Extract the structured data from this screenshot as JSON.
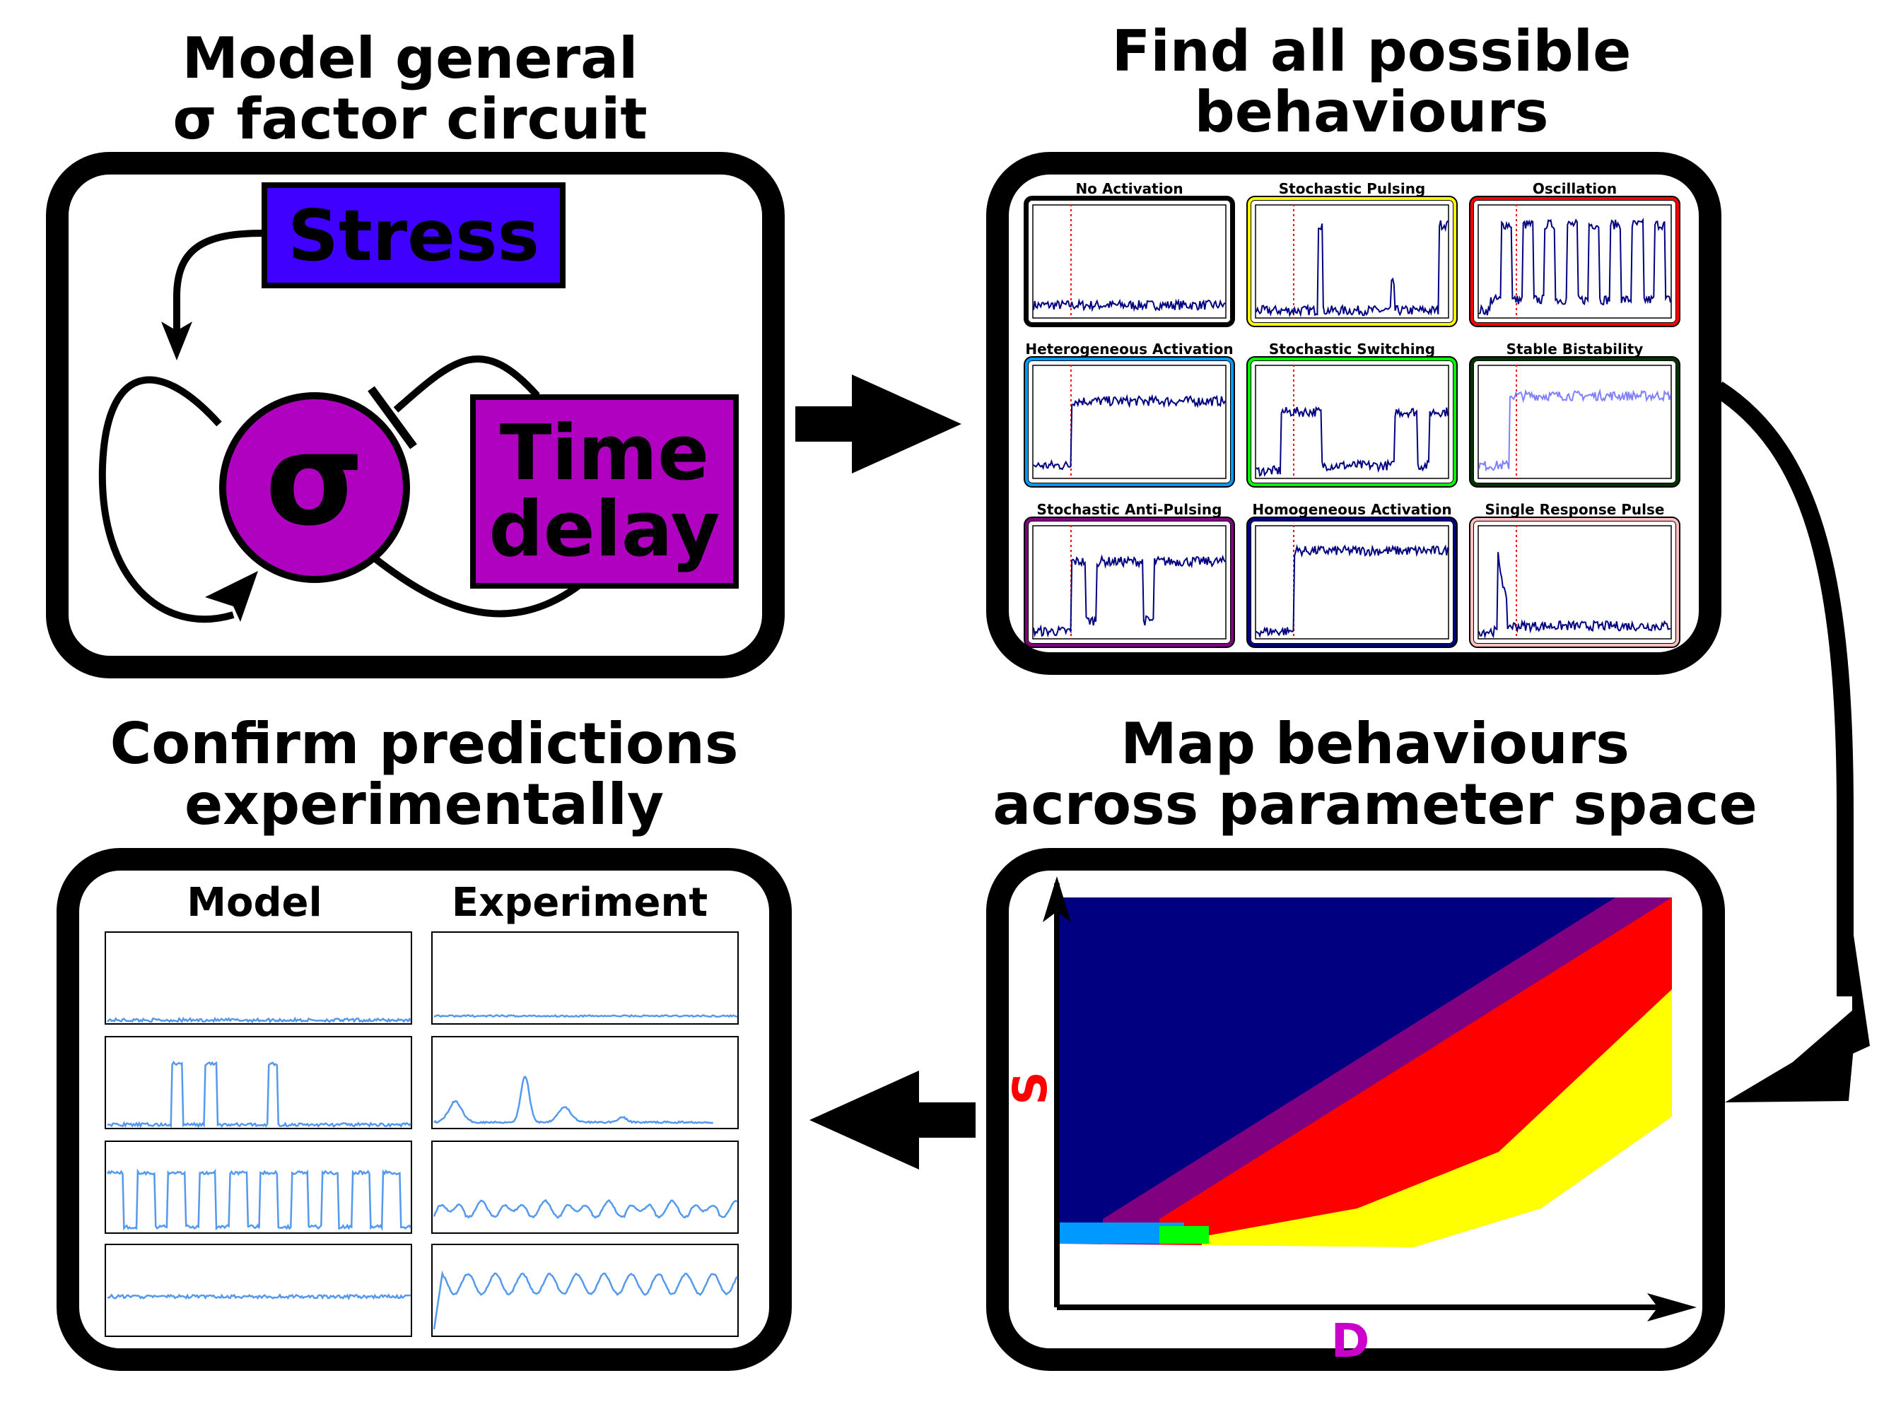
{
  "panels": {
    "model": {
      "title_lines": [
        "Model general",
        "σ factor circuit"
      ],
      "stress_label": "Stress",
      "sigma_label": "σ",
      "delay_lines": [
        "Time",
        "delay"
      ],
      "colors": {
        "stress": "#3f00ff",
        "sigma": "#b000c0"
      }
    },
    "behaviours": {
      "title_lines": [
        "Find all possible",
        "behaviours"
      ],
      "items": [
        {
          "label": "No Activation",
          "color": "#ffffff"
        },
        {
          "label": "Stochastic Pulsing",
          "color": "#ffff00"
        },
        {
          "label": "Oscillation",
          "color": "#ff0000"
        },
        {
          "label": "Heterogeneous Activation",
          "color": "#0099ff"
        },
        {
          "label": "Stochastic Switching",
          "color": "#00ff00"
        },
        {
          "label": "Stable Bistability",
          "color": "#003300"
        },
        {
          "label": "Stochastic Anti-Pulsing",
          "color": "#800080"
        },
        {
          "label": "Homogeneous Activation",
          "color": "#000080"
        },
        {
          "label": "Single Response Pulse",
          "color": "#ffc0c0"
        }
      ]
    },
    "map": {
      "title_lines": [
        "Map behaviours",
        "across parameter space"
      ],
      "x_label": "D",
      "y_label": "S",
      "x_color": "#cc00cc",
      "y_color": "#ff0000"
    },
    "confirm": {
      "title_lines": [
        "Confirm predictions",
        "experimentally"
      ],
      "col_model": "Model",
      "col_experiment": "Experiment"
    }
  }
}
